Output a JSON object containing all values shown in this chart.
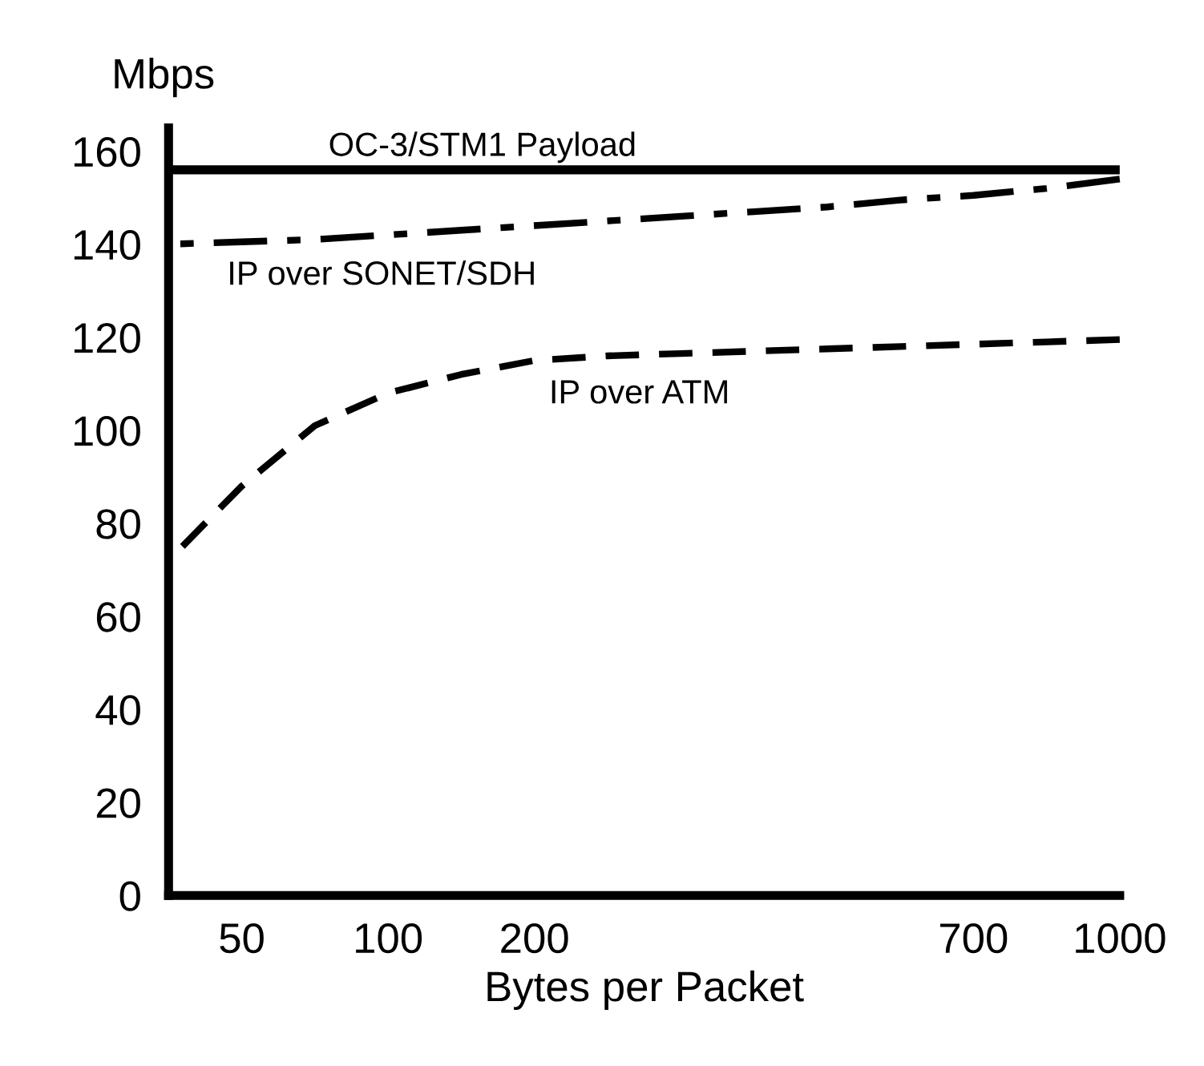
{
  "chart_data": {
    "type": "line",
    "xlabel": "Bytes per Packet",
    "ylabel": "Mbps",
    "categories": [
      null,
      "50",
      null,
      "100",
      null,
      "200",
      null,
      null,
      null,
      null,
      null,
      "700",
      null,
      "1000"
    ],
    "ylim": [
      0,
      165
    ],
    "yticks": [
      0,
      20,
      40,
      60,
      80,
      100,
      120,
      140,
      160
    ],
    "grid": false,
    "legend": false,
    "marker": "none",
    "ref_lines": [
      {
        "axis": "y",
        "value": 156,
        "label": "OC-3/STM1 Payload",
        "color": "#000000",
        "line_style": "solid"
      }
    ],
    "series": [
      {
        "name": "IP over SONET/SDH",
        "color": "#000000",
        "line_style": "dashdot",
        "values": [
          140,
          140.5,
          141,
          142,
          143,
          144,
          145,
          146,
          147,
          148,
          149.5,
          150.5,
          152,
          154
        ]
      },
      {
        "name": "IP over ATM",
        "color": "#000000",
        "line_style": "dashed",
        "values": [
          72,
          88,
          101,
          108,
          112,
          115,
          116,
          116.5,
          117,
          117.5,
          118,
          118.5,
          119,
          119.5
        ]
      }
    ]
  }
}
